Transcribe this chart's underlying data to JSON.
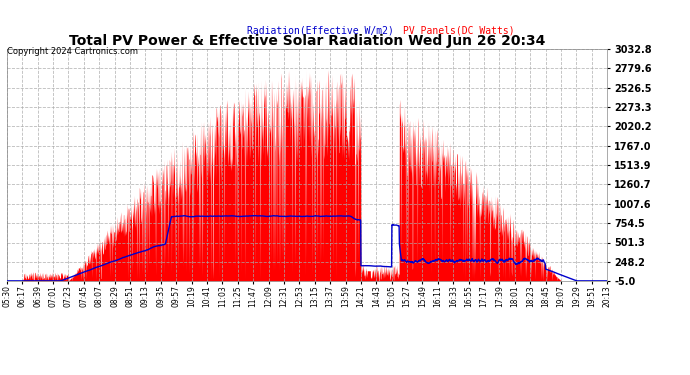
{
  "title": "Total PV Power & Effective Solar Radiation Wed Jun 26 20:34",
  "copyright": "Copyright 2024 Cartronics.com",
  "legend_radiation": "Radiation(Effective W/m2)",
  "legend_pv": "PV Panels(DC Watts)",
  "bg_color": "#ffffff",
  "plot_bg_color": "#ffffff",
  "grid_color": "#aaaaaa",
  "title_color": "#000000",
  "copyright_color": "#000000",
  "radiation_color": "#0000cc",
  "pv_color": "#ff0000",
  "ymin": -5.0,
  "ymax": 3032.8,
  "yticks": [
    -5.0,
    248.2,
    501.3,
    754.5,
    1007.6,
    1260.7,
    1513.9,
    1767.0,
    2020.2,
    2273.3,
    2526.5,
    2779.6,
    3032.8
  ],
  "xtick_labels": [
    "05:30",
    "06:17",
    "06:39",
    "07:01",
    "07:23",
    "07:45",
    "08:07",
    "08:29",
    "08:51",
    "09:13",
    "09:35",
    "09:57",
    "10:19",
    "10:41",
    "11:03",
    "11:25",
    "11:47",
    "12:09",
    "12:31",
    "12:53",
    "13:15",
    "13:37",
    "13:59",
    "14:21",
    "14:43",
    "15:05",
    "15:27",
    "15:49",
    "16:11",
    "16:33",
    "16:55",
    "17:17",
    "17:39",
    "18:01",
    "18:23",
    "18:45",
    "19:07",
    "19:29",
    "19:51",
    "20:13"
  ]
}
